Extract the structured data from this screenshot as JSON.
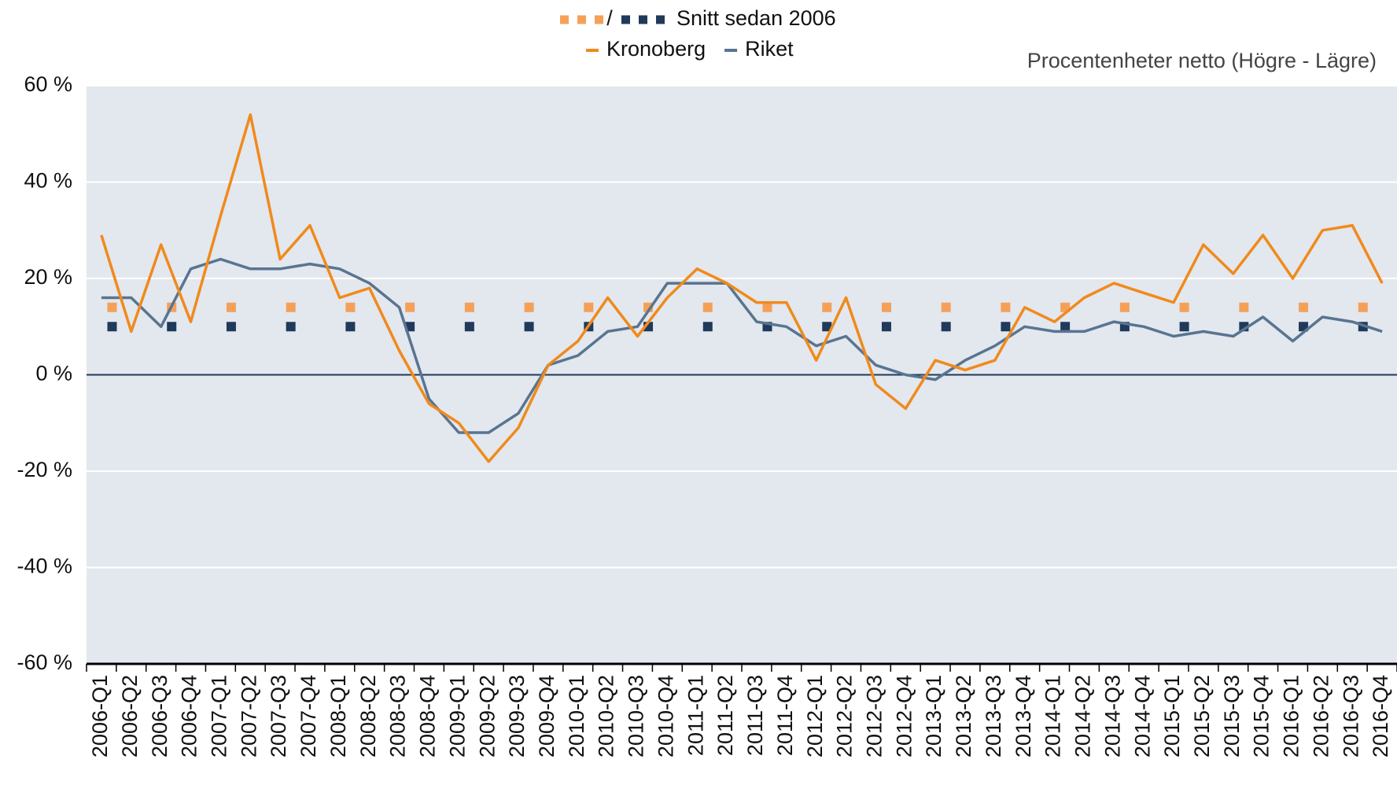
{
  "chart_data": {
    "type": "line",
    "unit_note": "Procentenheter netto (Högre - Lägre)",
    "average_name": "Snitt sedan 2006",
    "categories": [
      "2006-Q1",
      "2006-Q2",
      "2006-Q3",
      "2006-Q4",
      "2007-Q1",
      "2007-Q2",
      "2007-Q3",
      "2007-Q4",
      "2008-Q1",
      "2008-Q2",
      "2008-Q3",
      "2008-Q4",
      "2009-Q1",
      "2009-Q2",
      "2009-Q3",
      "2009-Q4",
      "2010-Q1",
      "2010-Q2",
      "2010-Q3",
      "2010-Q4",
      "2011-Q1",
      "2011-Q2",
      "2011-Q3",
      "2011-Q4",
      "2012-Q1",
      "2012-Q2",
      "2012-Q3",
      "2012-Q4",
      "2013-Q1",
      "2013-Q2",
      "2013-Q3",
      "2013-Q4",
      "2014-Q1",
      "2014-Q2",
      "2014-Q3",
      "2014-Q4",
      "2015-Q1",
      "2015-Q2",
      "2015-Q3",
      "2015-Q4",
      "2016-Q1",
      "2016-Q2",
      "2016-Q3",
      "2016-Q4"
    ],
    "series": [
      {
        "name": "Kronoberg",
        "color": "#f08a1c",
        "average": 14,
        "average_color": "#f5a058",
        "values": [
          29,
          9,
          27,
          11,
          33,
          54,
          24,
          31,
          16,
          18,
          5,
          -6,
          -10,
          -18,
          -11,
          2,
          7,
          16,
          8,
          16,
          22,
          19,
          15,
          15,
          3,
          16,
          -2,
          -7,
          3,
          1,
          3,
          14,
          11,
          16,
          19,
          17,
          15,
          27,
          21,
          29,
          20,
          30,
          31,
          19
        ]
      },
      {
        "name": "Riket",
        "color": "#587590",
        "average": 10,
        "average_color": "#1f3a5a",
        "values": [
          16,
          16,
          10,
          22,
          24,
          22,
          22,
          23,
          22,
          19,
          14,
          -5,
          -12,
          -12,
          -8,
          2,
          4,
          9,
          10,
          19,
          19,
          19,
          11,
          10,
          6,
          8,
          2,
          0,
          -1,
          3,
          6,
          10,
          9,
          9,
          11,
          10,
          8,
          9,
          8,
          12,
          7,
          12,
          11,
          9
        ]
      }
    ],
    "ylim": [
      -60,
      60
    ],
    "yticks": [
      {
        "value": -60,
        "label": "-60 %"
      },
      {
        "value": -40,
        "label": "-40 %"
      },
      {
        "value": -20,
        "label": "-20 %"
      },
      {
        "value": 0,
        "label": "0 %"
      },
      {
        "value": 20,
        "label": "20 %"
      },
      {
        "value": 40,
        "label": "40 %"
      },
      {
        "value": 60,
        "label": "60 %"
      }
    ],
    "grid": true
  }
}
